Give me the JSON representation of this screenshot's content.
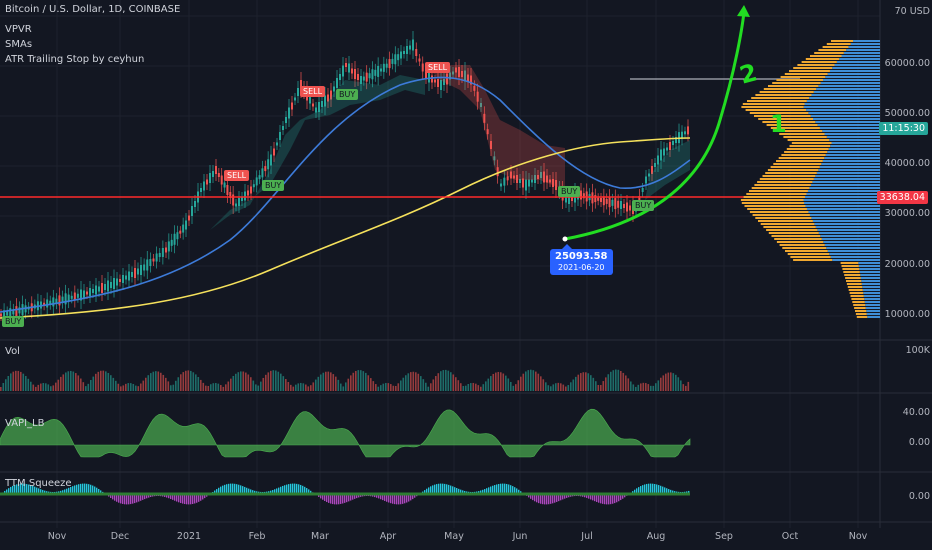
{
  "header": {
    "symbol": "Bitcoin / U.S. Dollar, 1D, COINBASE",
    "indicators": [
      "VPVR",
      "SMAs",
      "ATR Trailing Stop by ceyhun"
    ]
  },
  "price_axis": {
    "currency": "USD",
    "ticks": [
      "70",
      "60000.00",
      "50000.00",
      "40000.00",
      "30000.00",
      "20000.00",
      "10000.00"
    ],
    "countdown": "11:15:30",
    "red_line_value": "33638.04"
  },
  "time_axis": {
    "labels": [
      "Nov",
      "Dec",
      "2021",
      "Feb",
      "Mar",
      "Apr",
      "May",
      "Jun",
      "Jul",
      "Aug",
      "Sep",
      "Oct",
      "Nov"
    ]
  },
  "panes": {
    "vol": {
      "title": "Vol",
      "tick": "100K"
    },
    "vapi": {
      "title": "VAPI_LB",
      "ticks": [
        "40.00",
        "0.00"
      ]
    },
    "ttm": {
      "title": "TTM Squeeze",
      "ticks": [
        "0.00"
      ]
    }
  },
  "signals": [
    "BUY",
    "SELL",
    "BUY",
    "SELL",
    "BUY",
    "SELL",
    "BUY",
    "BUY"
  ],
  "annotation": {
    "price": "25093.58",
    "date": "2021-06-20"
  },
  "hand_labels": {
    "one": "1",
    "two": "2"
  },
  "colors": {
    "background": "#131722",
    "up": "#26a69a",
    "down": "#ef5350",
    "sma_fast": "#3d7bd9",
    "sma_slow": "#f5e15c",
    "support_line": "#ff2a2a",
    "vpvr_up": "#f0a830",
    "vpvr_down": "#3f8fd8",
    "drawing": "#22dd22",
    "callout": "#2962ff"
  },
  "icons": {
    "arrow": "arrow-up-icon"
  }
}
